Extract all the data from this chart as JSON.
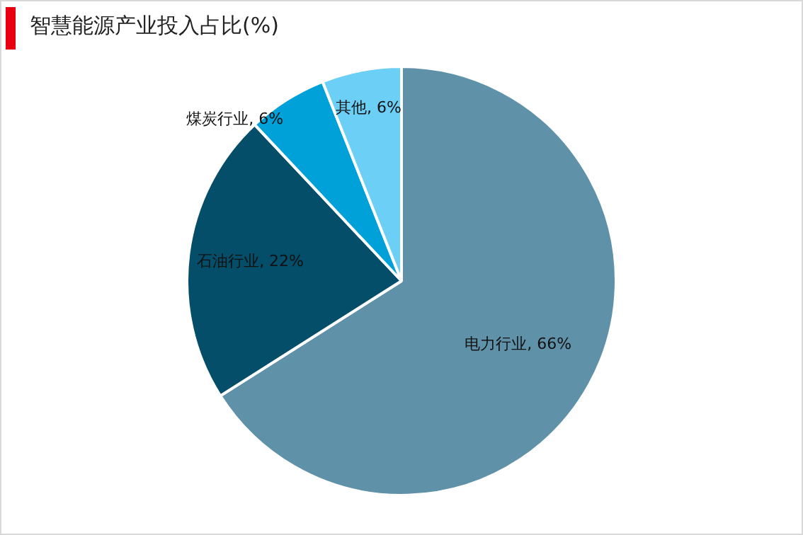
{
  "chart_data": {
    "type": "pie",
    "title": "智慧能源产业投入占比(%)",
    "categories": [
      "电力行业",
      "石油行业",
      "煤炭行业",
      "其他"
    ],
    "values": [
      66,
      22,
      6,
      6
    ],
    "value_labels": [
      "66%",
      "22%",
      "6%",
      "6%"
    ],
    "colors": [
      "#5f92a8",
      "#044e69",
      "#00a1d9",
      "#6ccff6"
    ],
    "legend": false
  }
}
